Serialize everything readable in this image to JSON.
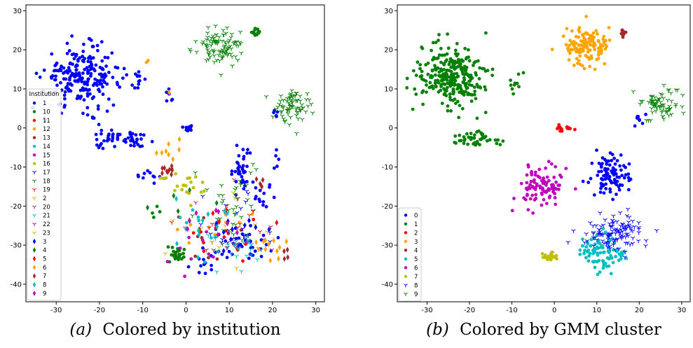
{
  "chart_data": [
    {
      "type": "scatter",
      "caption_var": "(a)",
      "caption_text": "Colored by institution",
      "legend_title": "Institution",
      "xlim": [
        -37,
        32
      ],
      "ylim": [
        -44.5,
        31.5
      ],
      "xticks": [
        -30,
        -20,
        -10,
        0,
        10,
        20,
        30
      ],
      "yticks": [
        -40,
        -30,
        -20,
        -10,
        0,
        10,
        20,
        30
      ],
      "grid": false,
      "legend_position": "left",
      "series": [
        {
          "name": "1",
          "color": "#0000ff",
          "marker": "circle",
          "clusters": [
            [
              -24,
              13,
              8,
              7,
              230
            ],
            [
              -15,
              -3,
              6,
              2,
              55
            ],
            [
              -11,
              12,
              1.5,
              3,
              12
            ],
            [
              -4,
              8,
              1.5,
              2,
              6
            ],
            [
              1,
              0,
              2,
              0.8,
              10
            ],
            [
              13,
              -10,
              3,
              5,
              40
            ],
            [
              18,
              -18,
              2,
              3,
              12
            ],
            [
              13,
              -30,
              7,
              5,
              40
            ],
            [
              -8,
              -12,
              2.5,
              1.5,
              10
            ],
            [
              4,
              -35,
              4,
              3,
              10
            ],
            [
              21,
              4,
              1.5,
              2,
              5
            ],
            [
              21,
              -8,
              1.5,
              2,
              5
            ]
          ]
        },
        {
          "name": "10",
          "color": "#008000",
          "marker": "circle",
          "clusters": [
            [
              16,
              24.5,
              0.7,
              0.8,
              12
            ],
            [
              -2,
              -32.5,
              2,
              2,
              25
            ],
            [
              -6,
              -21,
              1.5,
              2,
              4
            ]
          ]
        },
        {
          "name": "11",
          "color": "#ff0000",
          "marker": "circle",
          "clusters": [
            [
              6,
              -28,
              8,
              5,
              10
            ]
          ]
        },
        {
          "name": "12",
          "color": "#ffa500",
          "marker": "circle",
          "clusters": [
            [
              5,
              -25,
              8,
              6,
              10
            ],
            [
              -9,
              17,
              1,
              1,
              2
            ]
          ]
        },
        {
          "name": "13",
          "color": "#a52a2a",
          "marker": "circle",
          "clusters": [
            [
              5,
              -28,
              9,
              8,
              10
            ]
          ]
        },
        {
          "name": "14",
          "color": "#00bfbf",
          "marker": "circle",
          "clusters": [
            [
              4,
              -26,
              9,
              7,
              10
            ]
          ]
        },
        {
          "name": "15",
          "color": "#bf00bf",
          "marker": "circle",
          "clusters": [
            [
              4,
              -30,
              9,
              6,
              10
            ]
          ]
        },
        {
          "name": "16",
          "color": "#bfbf00",
          "marker": "circle",
          "clusters": [
            [
              0,
              -15,
              4,
              3,
              18
            ],
            [
              -5,
              -13,
              1,
              1,
              4
            ]
          ]
        },
        {
          "name": "17",
          "color": "#0000ff",
          "marker": "tri_down",
          "clusters": [
            [
              10,
              -25,
              8,
              8,
              25
            ]
          ]
        },
        {
          "name": "18",
          "color": "#008000",
          "marker": "tri_down",
          "clusters": [
            [
              8,
              21,
              5,
              4.5,
              100
            ],
            [
              25,
              6,
              4,
              4,
              75
            ],
            [
              12,
              -20,
              6,
              10,
              40
            ]
          ]
        },
        {
          "name": "19",
          "color": "#ff0000",
          "marker": "tri_down",
          "clusters": [
            [
              8,
              -25,
              10,
              8,
              8
            ]
          ]
        },
        {
          "name": "2",
          "color": "#ffa500",
          "marker": "tri_down",
          "clusters": [
            [
              10,
              -25,
              10,
              8,
              8
            ]
          ]
        },
        {
          "name": "20",
          "color": "#a52a2a",
          "marker": "tri_down",
          "clusters": [
            [
              8,
              -25,
              10,
              8,
              8
            ]
          ]
        },
        {
          "name": "21",
          "color": "#00bfbf",
          "marker": "tri_down",
          "clusters": [
            [
              12,
              -32,
              5,
              5,
              25
            ]
          ]
        },
        {
          "name": "22",
          "color": "#bf00bf",
          "marker": "tri_down",
          "clusters": [
            [
              8,
              -25,
              10,
              8,
              6
            ]
          ]
        },
        {
          "name": "23",
          "color": "#bfbf00",
          "marker": "tri_down",
          "clusters": [
            [
              8,
              -25,
              10,
              8,
              6
            ]
          ]
        },
        {
          "name": "3",
          "color": "#0000ff",
          "marker": "diamond",
          "clusters": [
            [
              12,
              -25,
              8,
              6,
              10
            ]
          ]
        },
        {
          "name": "4",
          "color": "#008000",
          "marker": "diamond",
          "clusters": [
            [
              2,
              -20,
              10,
              10,
              6
            ]
          ]
        },
        {
          "name": "5",
          "color": "#ff0000",
          "marker": "diamond",
          "clusters": [
            [
              10,
              -25,
              8,
              6,
              6
            ]
          ]
        },
        {
          "name": "6",
          "color": "#ffa500",
          "marker": "diamond",
          "clusters": [
            [
              20,
              -30,
              3,
              3,
              12
            ],
            [
              -4,
              -5,
              3,
              3,
              8
            ],
            [
              -4,
              9,
              0.5,
              0.5,
              1
            ]
          ]
        },
        {
          "name": "7",
          "color": "#a52a2a",
          "marker": "diamond",
          "clusters": [
            [
              -4,
              -11,
              2,
              2,
              10
            ],
            [
              18,
              -14,
              1.5,
              1.5,
              5
            ],
            [
              22,
              -32,
              2,
              2,
              4
            ]
          ]
        },
        {
          "name": "8",
          "color": "#00bfbf",
          "marker": "diamond",
          "clusters": [
            [
              5,
              -25,
              8,
              8,
              10
            ]
          ]
        },
        {
          "name": "9",
          "color": "#bf00bf",
          "marker": "diamond",
          "clusters": [
            [
              6,
              -25,
              8,
              8,
              8
            ]
          ]
        }
      ]
    },
    {
      "type": "scatter",
      "caption_var": "(b)",
      "caption_text": "Colored by GMM cluster",
      "xlim": [
        -37,
        32
      ],
      "ylim": [
        -44.5,
        31.5
      ],
      "xticks": [
        -30,
        -20,
        -10,
        0,
        10,
        20,
        30
      ],
      "yticks": [
        -40,
        -30,
        -20,
        -10,
        0,
        10,
        20,
        30
      ],
      "grid": false,
      "legend_position": "lower left",
      "series": [
        {
          "name": "0",
          "color": "#0000ff",
          "marker": "circle",
          "clusters": [
            [
              13,
              -12,
              4,
              5,
              90
            ],
            [
              20,
              2,
              1.5,
              2,
              8
            ]
          ]
        },
        {
          "name": "1",
          "color": "#008000",
          "marker": "circle",
          "clusters": [
            [
              -24,
              13,
              8,
              7,
              280
            ],
            [
              -18,
              -3,
              5,
              2,
              45
            ],
            [
              -9,
              12,
              1.5,
              3,
              10
            ]
          ]
        },
        {
          "name": "2",
          "color": "#ff0000",
          "marker": "circle",
          "clusters": [
            [
              2,
              0,
              2,
              0.8,
              15
            ]
          ]
        },
        {
          "name": "3",
          "color": "#ffa500",
          "marker": "circle",
          "clusters": [
            [
              8,
              21,
              5,
              4.5,
              130
            ]
          ]
        },
        {
          "name": "4",
          "color": "#a52a2a",
          "marker": "circle",
          "clusters": [
            [
              16,
              24.5,
              0.7,
              0.8,
              12
            ]
          ]
        },
        {
          "name": "5",
          "color": "#00bfbf",
          "marker": "circle",
          "clusters": [
            [
              11,
              -32,
              4,
              4,
              90
            ]
          ]
        },
        {
          "name": "6",
          "color": "#bf00bf",
          "marker": "circle",
          "clusters": [
            [
              -3,
              -15,
              5,
              5,
              95
            ]
          ]
        },
        {
          "name": "7",
          "color": "#bfbf00",
          "marker": "circle",
          "clusters": [
            [
              -1,
              -33,
              1.3,
              1,
              25
            ]
          ]
        },
        {
          "name": "8",
          "color": "#0000ff",
          "marker": "tri_down",
          "clusters": [
            [
              14,
              -27,
              6,
              4,
              120
            ]
          ]
        },
        {
          "name": "9",
          "color": "#008000",
          "marker": "tri_down",
          "clusters": [
            [
              25,
              6,
              4,
              4,
              75
            ]
          ]
        }
      ]
    }
  ]
}
